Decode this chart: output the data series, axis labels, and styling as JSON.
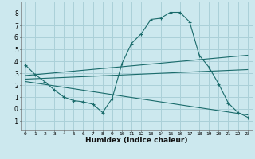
{
  "xlabel": "Humidex (Indice chaleur)",
  "bg_color": "#cce8ee",
  "grid_color": "#aad0d8",
  "line_color": "#1a6b6b",
  "xlim": [
    -0.5,
    23.5
  ],
  "ylim": [
    -1.8,
    9.0
  ],
  "yticks": [
    -1,
    0,
    1,
    2,
    3,
    4,
    5,
    6,
    7,
    8
  ],
  "xticks": [
    0,
    1,
    2,
    3,
    4,
    5,
    6,
    7,
    8,
    9,
    10,
    11,
    12,
    13,
    14,
    15,
    16,
    17,
    18,
    19,
    20,
    21,
    22,
    23
  ],
  "line1_x": [
    0,
    1,
    2,
    3,
    4,
    5,
    6,
    7,
    8,
    9,
    10,
    11,
    12,
    13,
    14,
    15,
    16,
    17,
    18,
    19,
    20,
    21,
    22,
    23
  ],
  "line1_y": [
    3.7,
    2.9,
    2.3,
    1.6,
    1.0,
    0.7,
    0.6,
    0.4,
    -0.3,
    0.9,
    3.8,
    5.5,
    6.3,
    7.5,
    7.6,
    8.1,
    8.1,
    7.3,
    4.5,
    3.5,
    2.1,
    0.5,
    -0.3,
    -0.7
  ],
  "line2_x": [
    0,
    23
  ],
  "line2_y": [
    2.8,
    4.5
  ],
  "line3_x": [
    0,
    23
  ],
  "line3_y": [
    2.5,
    3.3
  ],
  "line4_x": [
    0,
    23
  ],
  "line4_y": [
    2.3,
    -0.5
  ]
}
